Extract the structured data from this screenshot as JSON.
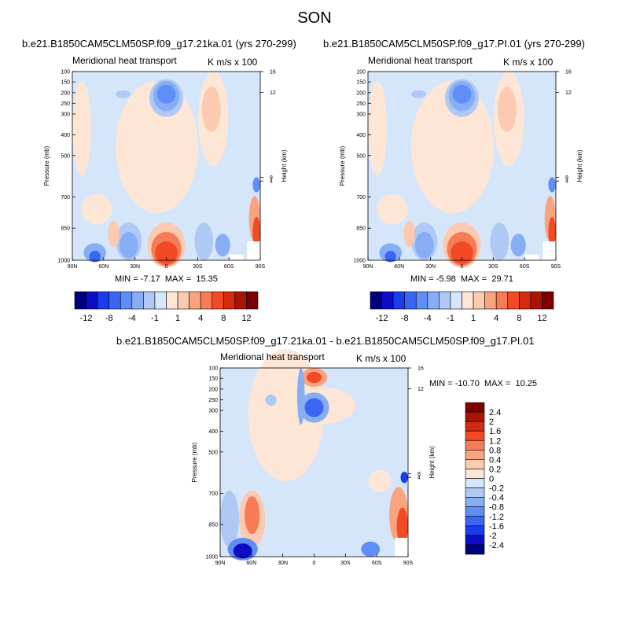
{
  "figure": {
    "season": "SON"
  },
  "palette": [
    "#00007f",
    "#0d0dc6",
    "#1a3cef",
    "#3a66f4",
    "#5f8ef6",
    "#87adf5",
    "#b0c9f4",
    "#d6e6fa",
    "#fde6d6",
    "#fbcab0",
    "#f9a37f",
    "#f77b54",
    "#f24a25",
    "#d42a10",
    "#a81507",
    "#7f0000"
  ],
  "chart_data": [
    {
      "type": "heatmap",
      "title": "b.e21.B1850CAM5CLM50SP.f09_g17.21ka.01 (yrs 270-299)",
      "subtitle": "Meridional heat transport",
      "units": "K m/s x 100",
      "ylabel": "Pressure (mb)",
      "ylabel_right": "Height (km)",
      "x_ticks": [
        "90N",
        "60N",
        "30N",
        "0",
        "30S",
        "60S",
        "90S"
      ],
      "y_ticks": [
        "100",
        "150",
        "200",
        "250",
        "300",
        "400",
        "500",
        "700",
        "850",
        "1000"
      ],
      "y_right_ticks": [
        "16",
        "12",
        "8",
        "4"
      ],
      "min": "-7.17",
      "max": "15.35",
      "colorbar_labels": [
        "-12",
        "-8",
        "-4",
        "-1",
        "1",
        "4",
        "8",
        "12"
      ]
    },
    {
      "type": "heatmap",
      "title": "b.e21.B1850CAM5CLM50SP.f09_g17.PI.01 (yrs 270-299)",
      "subtitle": "Meridional heat transport",
      "units": "K m/s x 100",
      "ylabel": "Pressure (mb)",
      "ylabel_right": "Height (km)",
      "x_ticks": [
        "90N",
        "60N",
        "30N",
        "0",
        "30S",
        "60S",
        "90S"
      ],
      "y_ticks": [
        "100",
        "150",
        "200",
        "250",
        "300",
        "400",
        "500",
        "700",
        "850",
        "1000"
      ],
      "y_right_ticks": [
        "16",
        "12",
        "8",
        "4"
      ],
      "min": "-5.98",
      "max": "29.71",
      "colorbar_labels": [
        "-12",
        "-8",
        "-4",
        "-1",
        "1",
        "4",
        "8",
        "12"
      ]
    },
    {
      "type": "heatmap",
      "title": "b.e21.B1850CAM5CLM50SP.f09_g17.21ka.01 - b.e21.B1850CAM5CLM50SP.f09_g17.PI.01",
      "subtitle": "Meridional heat transport",
      "units": "K m/s x 100",
      "ylabel": "Pressure (mb)",
      "ylabel_right": "Height (km)",
      "x_ticks": [
        "90N",
        "60N",
        "30N",
        "0",
        "30S",
        "60S",
        "90S"
      ],
      "y_ticks": [
        "100",
        "150",
        "200",
        "250",
        "300",
        "400",
        "500",
        "700",
        "850",
        "1000"
      ],
      "y_right_ticks": [
        "16",
        "12",
        "8",
        "4"
      ],
      "min": "-10.70",
      "max": "10.25",
      "colorbar_labels": [
        "2.4",
        "2",
        "1.6",
        "1.2",
        "0.8",
        "0.4",
        "0.2",
        "0",
        "-0.2",
        "-0.4",
        "-0.8",
        "-1.2",
        "-1.6",
        "-2",
        "-2.4"
      ]
    }
  ]
}
